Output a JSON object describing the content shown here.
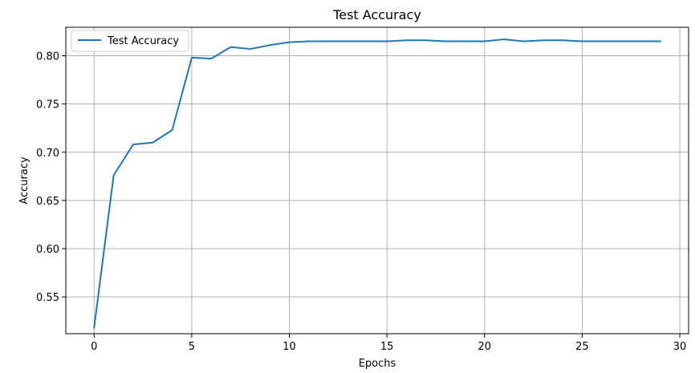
{
  "chart_data": {
    "type": "line",
    "title": "Test Accuracy",
    "xlabel": "Epochs",
    "ylabel": "Accuracy",
    "xlim": [
      -1.45,
      30.45
    ],
    "ylim": [
      0.5119,
      0.8295
    ],
    "xticks": [
      0,
      5,
      10,
      15,
      20,
      25,
      30
    ],
    "yticks": [
      0.55,
      0.6,
      0.65,
      0.7,
      0.75,
      0.8
    ],
    "ytick_labels": [
      "0.55",
      "0.60",
      "0.65",
      "0.70",
      "0.75",
      "0.80"
    ],
    "grid": true,
    "legend_position": "upper left",
    "series": [
      {
        "name": "Test Accuracy",
        "color": "#1f77b4",
        "x": [
          0,
          1,
          2,
          3,
          4,
          5,
          6,
          7,
          8,
          9,
          10,
          11,
          12,
          13,
          14,
          15,
          16,
          17,
          18,
          19,
          20,
          21,
          22,
          23,
          24,
          25,
          26,
          27,
          28,
          29
        ],
        "values": [
          0.518,
          0.676,
          0.708,
          0.71,
          0.723,
          0.798,
          0.797,
          0.809,
          0.807,
          0.811,
          0.814,
          0.815,
          0.815,
          0.815,
          0.815,
          0.815,
          0.816,
          0.816,
          0.815,
          0.815,
          0.815,
          0.817,
          0.815,
          0.816,
          0.816,
          0.815,
          0.815,
          0.815,
          0.815,
          0.815
        ]
      }
    ]
  }
}
